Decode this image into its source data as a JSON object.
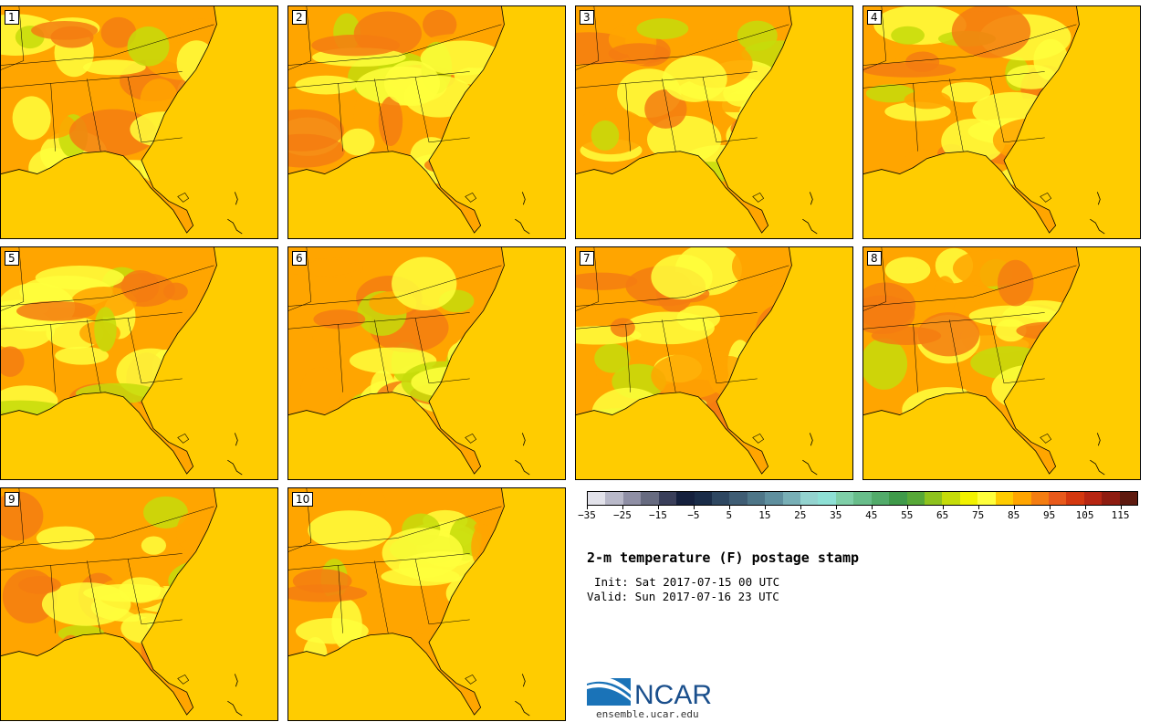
{
  "panels": [
    "1",
    "2",
    "3",
    "4",
    "5",
    "6",
    "7",
    "8",
    "9",
    "10"
  ],
  "colorbar": {
    "colors": [
      "#e2e2ea",
      "#b9b9c9",
      "#8f8fa5",
      "#676b80",
      "#3a3f5a",
      "#15203d",
      "#1a2c48",
      "#2e4761",
      "#3f5d74",
      "#4e7688",
      "#5f8f9e",
      "#78afb6",
      "#93d3cf",
      "#8ee0d5",
      "#7fcfa8",
      "#68bd8a",
      "#52ab6a",
      "#3f9a4a",
      "#57a838",
      "#8ec21e",
      "#c5dc0a",
      "#f2f200",
      "#ffff3c",
      "#ffcc00",
      "#ffa500",
      "#f47d11",
      "#e8591b",
      "#d4380f",
      "#b72612",
      "#8e1c10",
      "#5e1a0f"
    ],
    "tick_labels": [
      "−35",
      "−25",
      "−15",
      "−5",
      "5",
      "15",
      "25",
      "35",
      "45",
      "55",
      "65",
      "75",
      "85",
      "95",
      "105",
      "115"
    ]
  },
  "title": "2-m temperature (F) postage stamp",
  "init": "Init: Sat 2017-07-15 00 UTC",
  "valid": "Valid: Sun 2017-07-16 23 UTC",
  "logo_text": "NCAR",
  "logo_url": "ensemble.ucar.edu",
  "colors": {
    "ocean": "#ffcc00",
    "warm": "#ffa500",
    "hot": "#f47d11",
    "mild": "#ffff3c",
    "cool": "#c5dc0a"
  }
}
